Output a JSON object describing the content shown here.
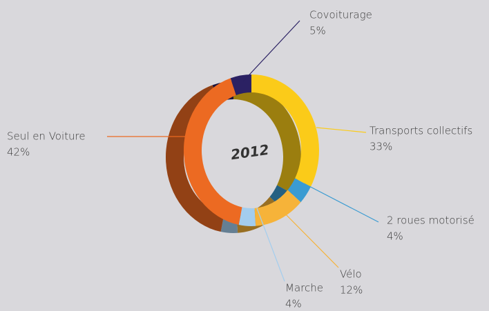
{
  "chart_data": {
    "type": "pie",
    "title": "2012",
    "categories": [
      "Covoiturage",
      "Transports collectifs",
      "2 roues motorisé",
      "Vélo",
      "Marche",
      "Seul en Voiture"
    ],
    "values": [
      5,
      33,
      4,
      12,
      4,
      42
    ],
    "value_labels": [
      "5%",
      "33%",
      "4%",
      "12%",
      "4%",
      "42%"
    ],
    "colors": [
      "#2b2163",
      "#fbcb19",
      "#3a9bd2",
      "#f6b339",
      "#a3cdee",
      "#ec6a22"
    ]
  }
}
